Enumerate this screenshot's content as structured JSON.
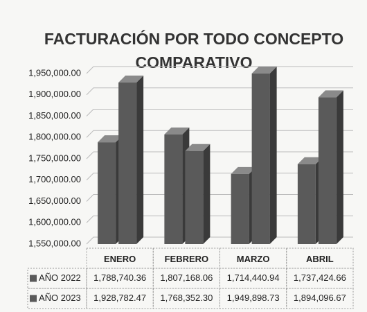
{
  "chart_data": {
    "type": "bar3d",
    "title": "FACTURACIÓN POR TODO CONCEPTO",
    "subtitle": "COMPARATIVO",
    "categories": [
      "ENERO",
      "FEBRERO",
      "MARZO",
      "ABRIL"
    ],
    "series": [
      {
        "name": "AÑO 2022",
        "color": "#5a5a5a",
        "values": [
          1788740.36,
          1807168.06,
          1714440.94,
          1737424.66
        ],
        "value_labels": [
          "1,788,740.36",
          "1,807,168.06",
          "1,714,440.94",
          "1,737,424.66"
        ]
      },
      {
        "name": "AÑO 2023",
        "color": "#5a5a5a",
        "values": [
          1928782.47,
          1768352.3,
          1949898.73,
          1894096.67
        ],
        "value_labels": [
          "1,928,782.47",
          "1,768,352.30",
          "1,949,898.73",
          "1,894,096.67"
        ]
      }
    ],
    "ylim": [
      1550000,
      1950000
    ],
    "yticks": [
      {
        "value": 1550000,
        "label": "1,550,000.00"
      },
      {
        "value": 1600000,
        "label": "1,600,000.00"
      },
      {
        "value": 1650000,
        "label": "1,650,000.00"
      },
      {
        "value": 1700000,
        "label": "1,700,000.00"
      },
      {
        "value": 1750000,
        "label": "1,750,000.00"
      },
      {
        "value": 1800000,
        "label": "1,800,000.00"
      },
      {
        "value": 1850000,
        "label": "1,850,000.00"
      },
      {
        "value": 1900000,
        "label": "1,900,000.00"
      },
      {
        "value": 1950000,
        "label": "1,950,000.00"
      }
    ],
    "grid": true
  }
}
